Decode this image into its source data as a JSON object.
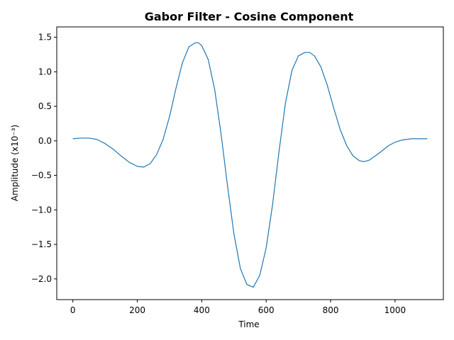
{
  "chart_data": {
    "type": "line",
    "title": "Gabor Filter - Cosine Component",
    "xlabel": "Time",
    "ylabel": "Amplitude (x10⁻³)",
    "xlim": [
      -50,
      1150
    ],
    "ylim": [
      -2.3,
      1.65
    ],
    "xticks": [
      0,
      200,
      400,
      600,
      800,
      1000
    ],
    "yticks": [
      -2.0,
      -1.5,
      -1.0,
      -0.5,
      0.0,
      0.5,
      1.0,
      1.5
    ],
    "ytick_labels": [
      "−2.0",
      "−1.5",
      "−1.0",
      "−0.5",
      "0.0",
      "0.5",
      "1.0",
      "1.5"
    ],
    "grid": false,
    "series": [
      {
        "color": "#1f77b4",
        "x": [
          0,
          25,
          50,
          75,
          100,
          125,
          150,
          175,
          200,
          220,
          240,
          260,
          280,
          300,
          320,
          340,
          360,
          380,
          390,
          400,
          420,
          440,
          460,
          480,
          500,
          520,
          540,
          560,
          580,
          600,
          620,
          640,
          660,
          680,
          700,
          720,
          735,
          750,
          770,
          790,
          810,
          830,
          850,
          870,
          890,
          905,
          920,
          950,
          980,
          1000,
          1020,
          1050,
          1080,
          1100
        ],
        "y": [
          0.03,
          0.04,
          0.04,
          0.02,
          -0.04,
          -0.12,
          -0.22,
          -0.31,
          -0.37,
          -0.38,
          -0.33,
          -0.2,
          0.02,
          0.35,
          0.76,
          1.13,
          1.36,
          1.42,
          1.42,
          1.38,
          1.18,
          0.75,
          0.1,
          -0.65,
          -1.35,
          -1.85,
          -2.08,
          -2.12,
          -1.95,
          -1.55,
          -0.92,
          -0.15,
          0.55,
          1.02,
          1.23,
          1.28,
          1.28,
          1.23,
          1.07,
          0.8,
          0.47,
          0.16,
          -0.07,
          -0.22,
          -0.29,
          -0.3,
          -0.28,
          -0.18,
          -0.07,
          -0.02,
          0.01,
          0.03,
          0.03,
          0.03
        ]
      }
    ]
  }
}
